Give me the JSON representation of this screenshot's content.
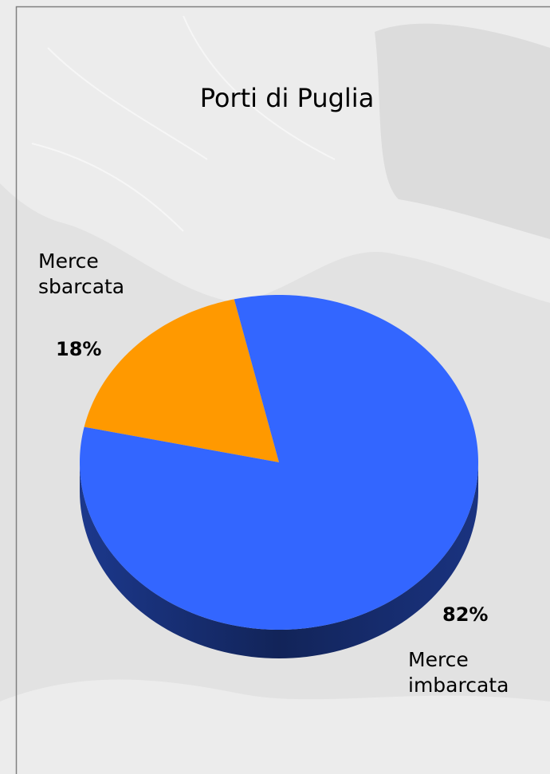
{
  "chart_data": {
    "type": "pie",
    "title": "Porti di Puglia",
    "categories": [
      "Merce sbarcata",
      "Merce imbarcata"
    ],
    "values": [
      18,
      82
    ],
    "value_labels": [
      "18%",
      "82%"
    ],
    "colors": [
      "#ff9900",
      "#3366ff"
    ]
  }
}
